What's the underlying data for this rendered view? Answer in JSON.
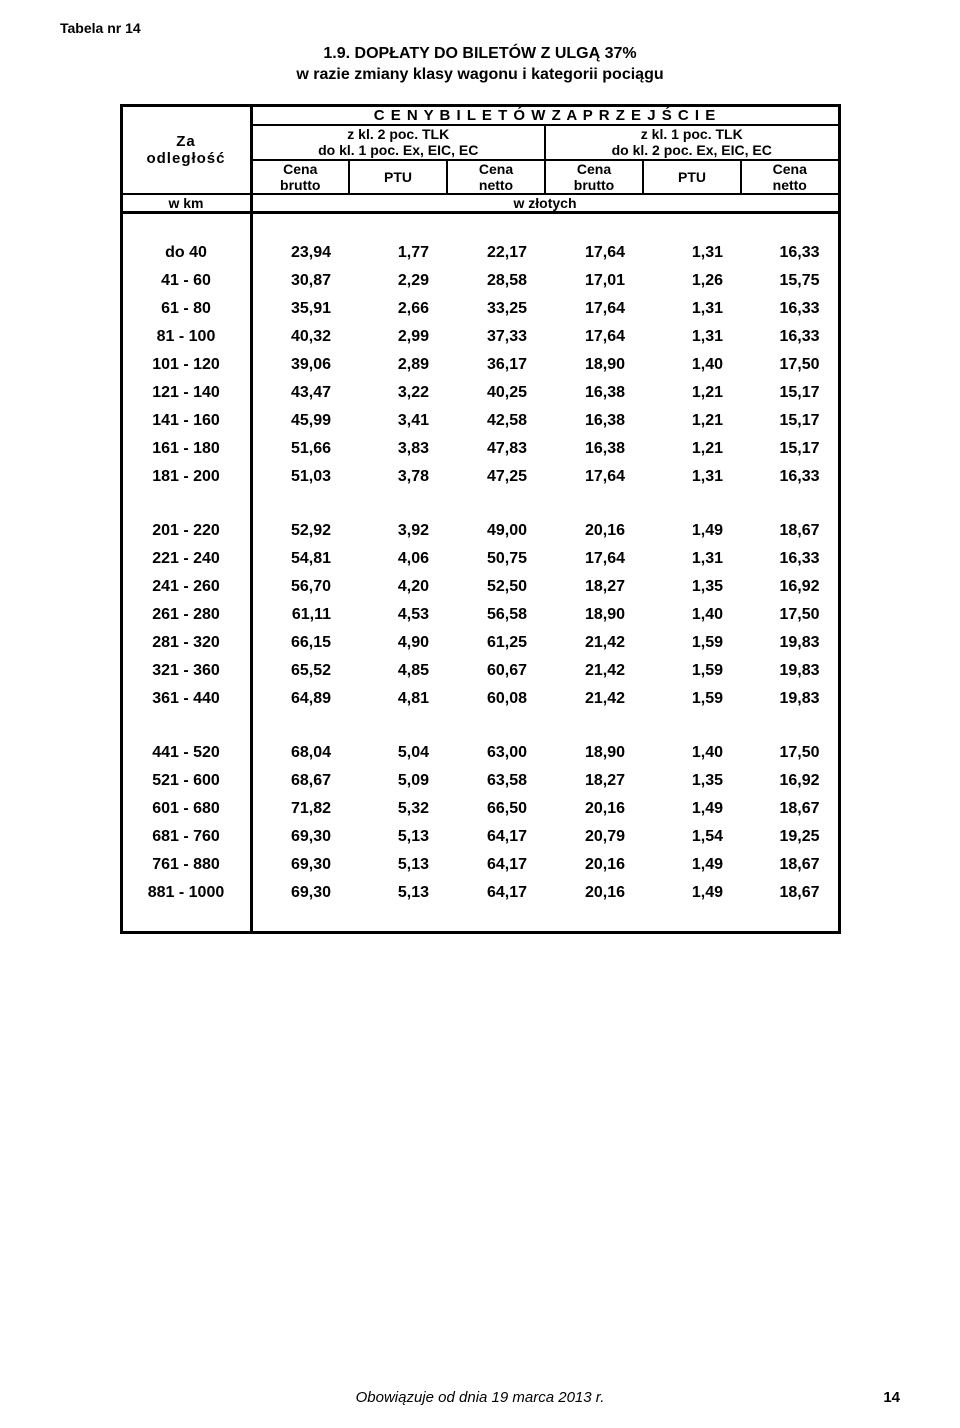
{
  "tab_label": "Tabela nr 14",
  "title_line1": "1.9. DOPŁATY  DO  BILETÓW  Z  ULGĄ  37%",
  "title_line2": "w razie zmiany klasy wagonu i kategorii pociągu",
  "header_main": "C E N Y   B I L E T Ó W   Z A   P R Z E J Ś C I E",
  "za_odleglosc_1": "Za",
  "za_odleglosc_2": "odległość",
  "col_left_1": "z kl. 2 poc. TLK",
  "col_left_2": "do kl. 1 poc. Ex, EIC, EC",
  "col_right_1": "z kl. 1 poc. TLK",
  "col_right_2": "do kl. 2 poc. Ex, EIC, EC",
  "cena_brutto": "Cena brutto",
  "ptu": "PTU",
  "cena_netto": "Cena netto",
  "w_km": "w km",
  "w_zlotych": "w złotych",
  "groups": [
    [
      {
        "d": "do  40",
        "v": [
          "23,94",
          "1,77",
          "22,17",
          "17,64",
          "1,31",
          "16,33"
        ]
      },
      {
        "d": "41 - 60",
        "v": [
          "30,87",
          "2,29",
          "28,58",
          "17,01",
          "1,26",
          "15,75"
        ]
      },
      {
        "d": "61 - 80",
        "v": [
          "35,91",
          "2,66",
          "33,25",
          "17,64",
          "1,31",
          "16,33"
        ]
      },
      {
        "d": "81 - 100",
        "v": [
          "40,32",
          "2,99",
          "37,33",
          "17,64",
          "1,31",
          "16,33"
        ]
      },
      {
        "d": "101 - 120",
        "v": [
          "39,06",
          "2,89",
          "36,17",
          "18,90",
          "1,40",
          "17,50"
        ]
      },
      {
        "d": "121 - 140",
        "v": [
          "43,47",
          "3,22",
          "40,25",
          "16,38",
          "1,21",
          "15,17"
        ]
      },
      {
        "d": "141 - 160",
        "v": [
          "45,99",
          "3,41",
          "42,58",
          "16,38",
          "1,21",
          "15,17"
        ]
      },
      {
        "d": "161 - 180",
        "v": [
          "51,66",
          "3,83",
          "47,83",
          "16,38",
          "1,21",
          "15,17"
        ]
      },
      {
        "d": "181 - 200",
        "v": [
          "51,03",
          "3,78",
          "47,25",
          "17,64",
          "1,31",
          "16,33"
        ]
      }
    ],
    [
      {
        "d": "201 - 220",
        "v": [
          "52,92",
          "3,92",
          "49,00",
          "20,16",
          "1,49",
          "18,67"
        ]
      },
      {
        "d": "221 - 240",
        "v": [
          "54,81",
          "4,06",
          "50,75",
          "17,64",
          "1,31",
          "16,33"
        ]
      },
      {
        "d": "241 - 260",
        "v": [
          "56,70",
          "4,20",
          "52,50",
          "18,27",
          "1,35",
          "16,92"
        ]
      },
      {
        "d": "261 - 280",
        "v": [
          "61,11",
          "4,53",
          "56,58",
          "18,90",
          "1,40",
          "17,50"
        ]
      },
      {
        "d": "281 - 320",
        "v": [
          "66,15",
          "4,90",
          "61,25",
          "21,42",
          "1,59",
          "19,83"
        ]
      },
      {
        "d": "321 - 360",
        "v": [
          "65,52",
          "4,85",
          "60,67",
          "21,42",
          "1,59",
          "19,83"
        ]
      },
      {
        "d": "361 - 440",
        "v": [
          "64,89",
          "4,81",
          "60,08",
          "21,42",
          "1,59",
          "19,83"
        ]
      }
    ],
    [
      {
        "d": "441 - 520",
        "v": [
          "68,04",
          "5,04",
          "63,00",
          "18,90",
          "1,40",
          "17,50"
        ]
      },
      {
        "d": "521 - 600",
        "v": [
          "68,67",
          "5,09",
          "63,58",
          "18,27",
          "1,35",
          "16,92"
        ]
      },
      {
        "d": "601 - 680",
        "v": [
          "71,82",
          "5,32",
          "66,50",
          "20,16",
          "1,49",
          "18,67"
        ]
      },
      {
        "d": "681 - 760",
        "v": [
          "69,30",
          "5,13",
          "64,17",
          "20,79",
          "1,54",
          "19,25"
        ]
      },
      {
        "d": "761 - 880",
        "v": [
          "69,30",
          "5,13",
          "64,17",
          "20,16",
          "1,49",
          "18,67"
        ]
      },
      {
        "d": "881 - 1000",
        "v": [
          "69,30",
          "5,13",
          "64,17",
          "20,16",
          "1,49",
          "18,67"
        ]
      }
    ]
  ],
  "footer": "Obowiązuje od dnia 19 marca 2013 r.",
  "page_num": "14"
}
